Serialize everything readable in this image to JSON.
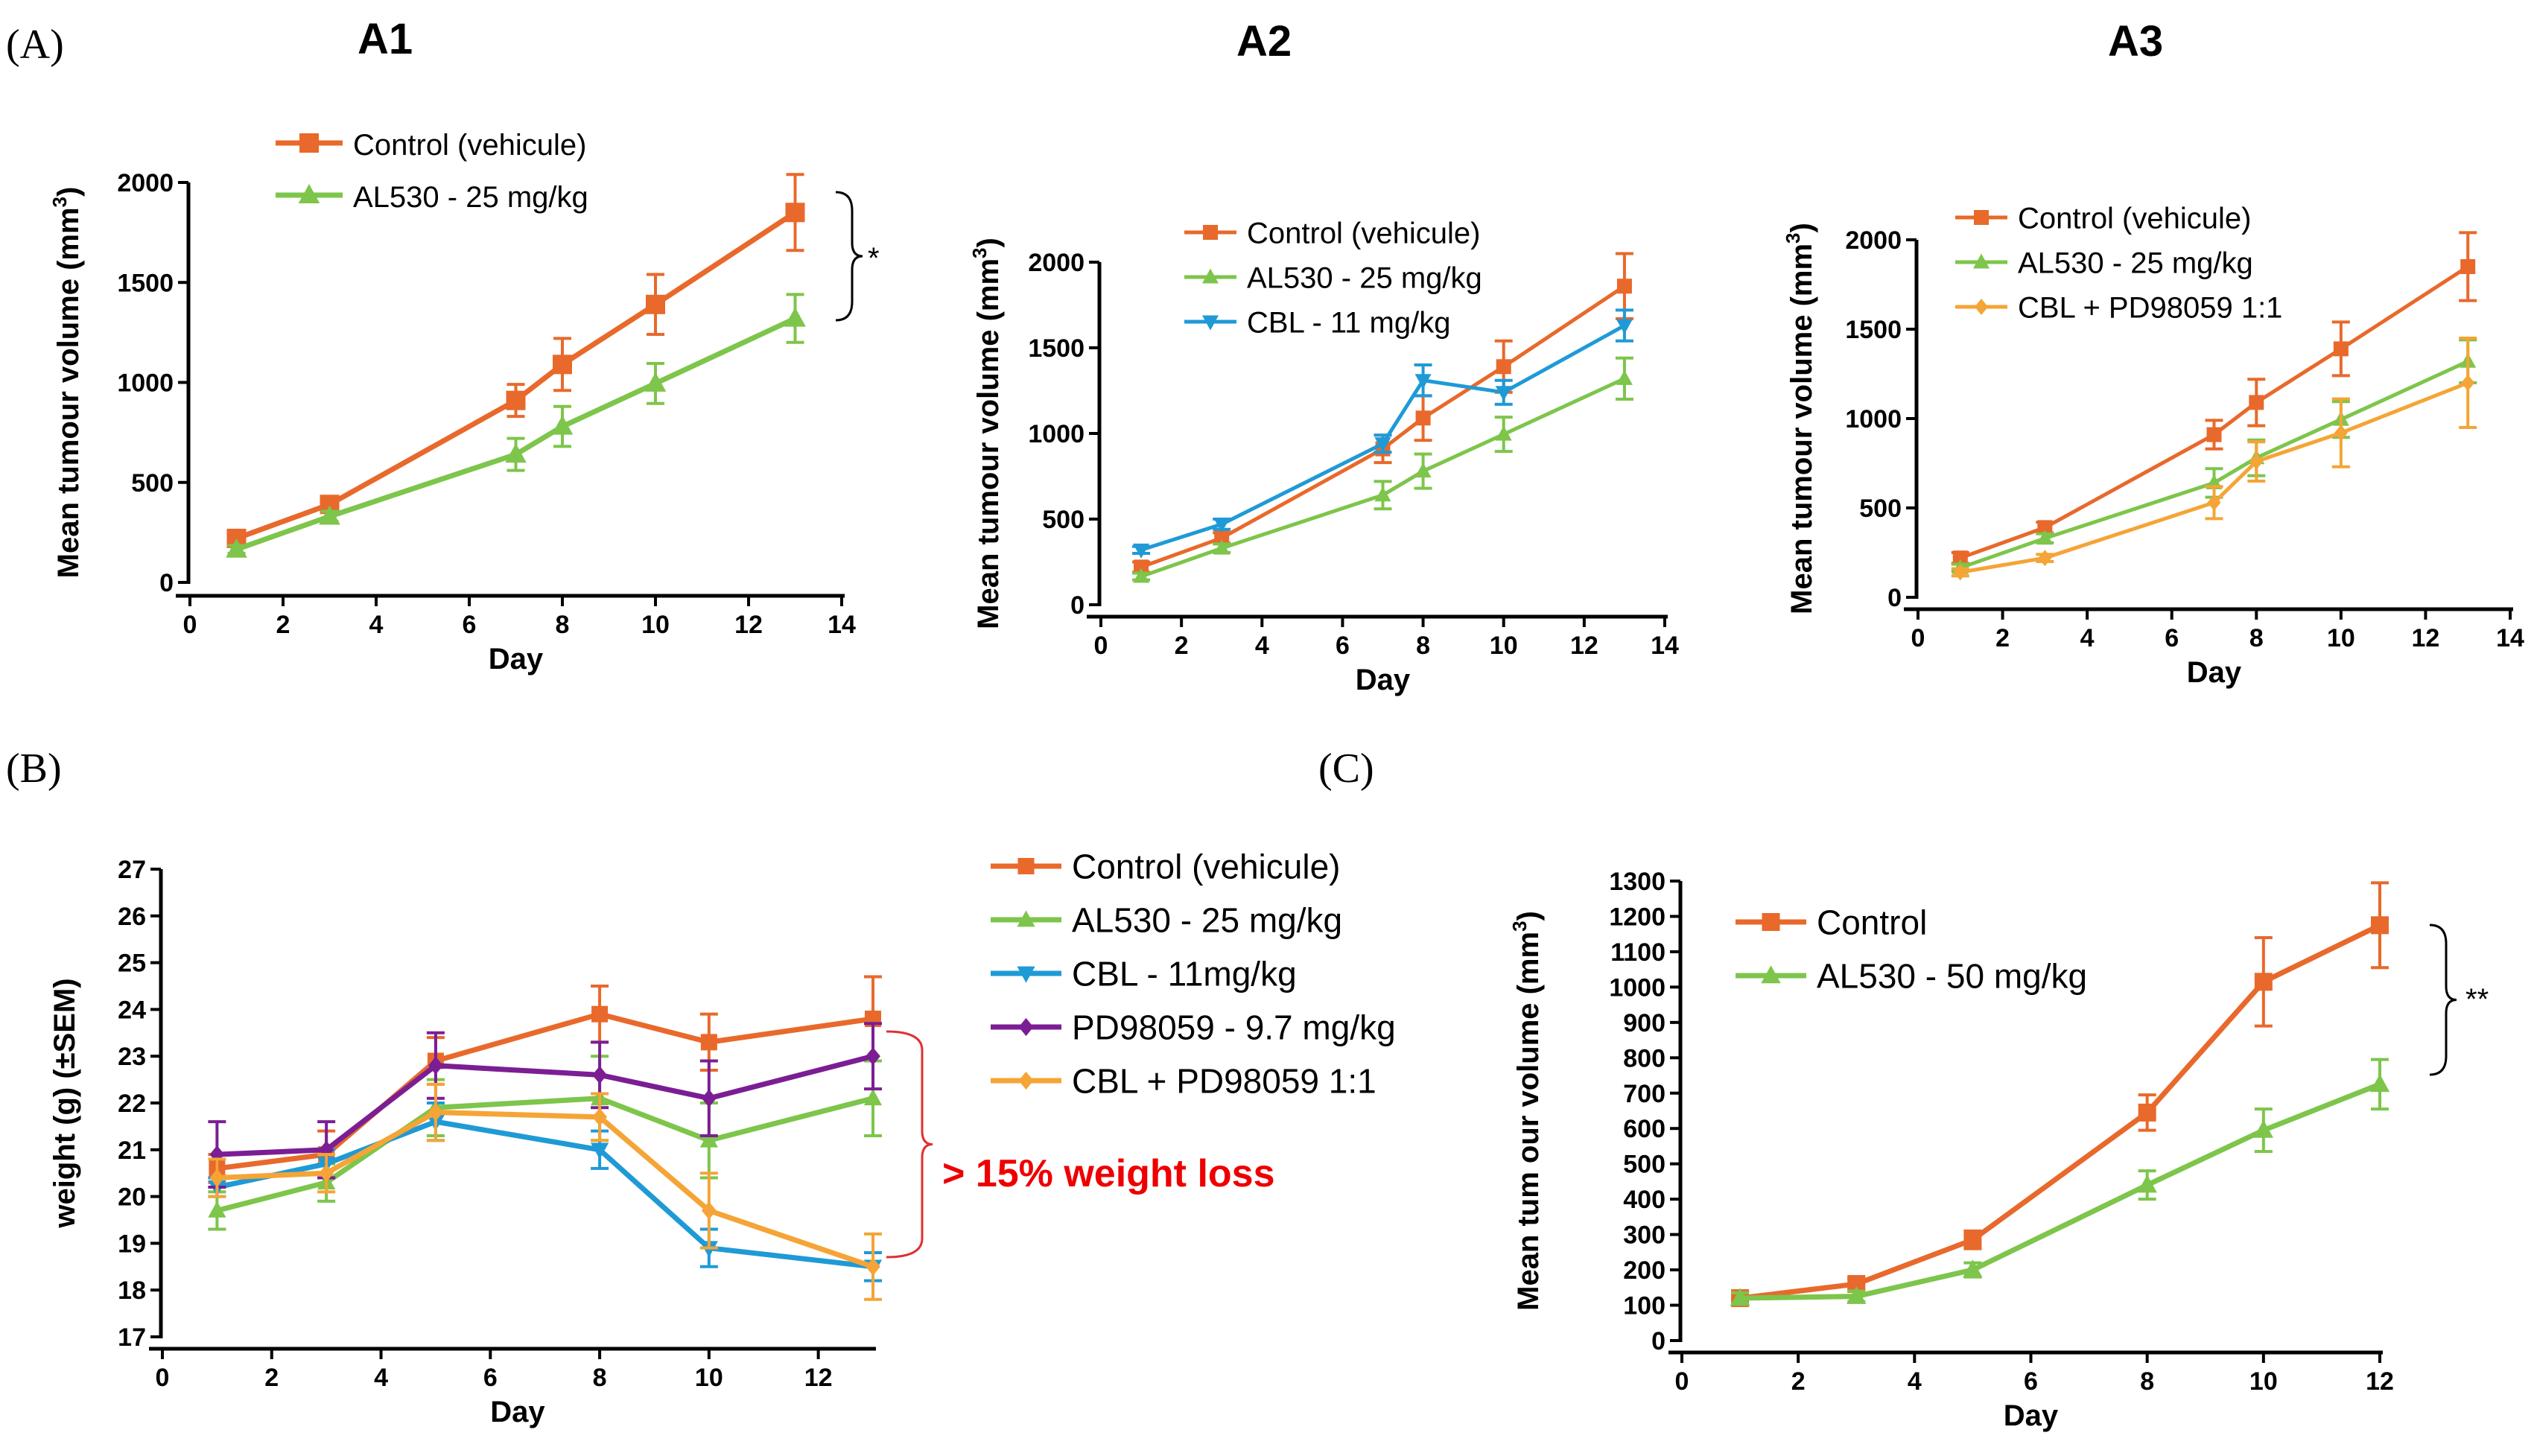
{
  "colors": {
    "control": "#E8692B",
    "al530": "#7DC54B",
    "cbl": "#1F9AD6",
    "pd": "#7B1E94",
    "combo": "#F5A436",
    "red": "#EE0000",
    "bracketB": "#E03030"
  },
  "labels": {
    "panelA": "(A)",
    "panelB": "(B)",
    "panelC": "(C)",
    "a1": "A1",
    "a2": "A2",
    "a3": "A3",
    "weight_loss": "> 15% weight loss",
    "star_a1": "*",
    "star_c": "**"
  },
  "chart_data": [
    {
      "id": "A1",
      "type": "line",
      "title": "A1",
      "xlabel": "Day",
      "ylabel": "Mean tumour volume (mm",
      "ylabel_sup": "3",
      "ylabel_close": ")",
      "xlim": [
        0,
        14
      ],
      "ylim": [
        0,
        2000
      ],
      "xticks": [
        0,
        2,
        4,
        6,
        8,
        10,
        12,
        14
      ],
      "yticks": [
        0,
        500,
        1000,
        1500,
        2000
      ],
      "series": [
        {
          "name": "Control (vehicule)",
          "color": "control",
          "marker": "square",
          "x": [
            1,
            3,
            7,
            8,
            10,
            13
          ],
          "y": [
            220,
            390,
            910,
            1090,
            1390,
            1850
          ],
          "err": [
            30,
            30,
            80,
            130,
            150,
            190
          ]
        },
        {
          "name": "AL530 - 25 mg/kg",
          "color": "al530",
          "marker": "triangle-up",
          "x": [
            1,
            3,
            7,
            8,
            10,
            13
          ],
          "y": [
            165,
            330,
            640,
            780,
            995,
            1320
          ],
          "err": [
            20,
            25,
            80,
            100,
            100,
            120
          ]
        }
      ],
      "annotation": "*"
    },
    {
      "id": "A2",
      "type": "line",
      "title": "A2",
      "xlabel": "Day",
      "ylabel": "Mean tumour volume (mm",
      "ylabel_sup": "3",
      "ylabel_close": ")",
      "xlim": [
        0,
        14
      ],
      "ylim": [
        0,
        2000
      ],
      "xticks": [
        0,
        2,
        4,
        6,
        8,
        10,
        12,
        14
      ],
      "yticks": [
        0,
        500,
        1000,
        1500,
        2000
      ],
      "series": [
        {
          "name": "Control (vehicule)",
          "color": "control",
          "marker": "square",
          "x": [
            1,
            3,
            7,
            8,
            10,
            13
          ],
          "y": [
            220,
            390,
            910,
            1090,
            1390,
            1860
          ],
          "err": [
            30,
            30,
            80,
            130,
            150,
            190
          ]
        },
        {
          "name": "AL530 - 25 mg/kg",
          "color": "al530",
          "marker": "triangle-up",
          "x": [
            1,
            3,
            7,
            8,
            10,
            13
          ],
          "y": [
            165,
            330,
            640,
            780,
            995,
            1320
          ],
          "err": [
            20,
            25,
            80,
            100,
            100,
            120
          ]
        },
        {
          "name": "CBL - 11 mg/kg",
          "color": "cbl",
          "marker": "triangle-down",
          "x": [
            1,
            3,
            7,
            8,
            10,
            13
          ],
          "y": [
            320,
            470,
            940,
            1310,
            1240,
            1630
          ],
          "err": [
            20,
            30,
            50,
            90,
            70,
            90
          ]
        }
      ]
    },
    {
      "id": "A3",
      "type": "line",
      "title": "A3",
      "xlabel": "Day",
      "ylabel": "Mean tumour volume (mm",
      "ylabel_sup": "3",
      "ylabel_close": ")",
      "xlim": [
        0,
        14
      ],
      "ylim": [
        0,
        2000
      ],
      "xticks": [
        0,
        2,
        4,
        6,
        8,
        10,
        12,
        14
      ],
      "yticks": [
        0,
        500,
        1000,
        1500,
        2000
      ],
      "series": [
        {
          "name": "Control (vehicule)",
          "color": "control",
          "marker": "square",
          "x": [
            1,
            3,
            7,
            8,
            10,
            13
          ],
          "y": [
            220,
            390,
            910,
            1090,
            1390,
            1850
          ],
          "err": [
            30,
            30,
            80,
            130,
            150,
            190
          ]
        },
        {
          "name": "AL530 - 25 mg/kg",
          "color": "al530",
          "marker": "triangle-up",
          "x": [
            1,
            3,
            7,
            8,
            10,
            13
          ],
          "y": [
            165,
            330,
            640,
            780,
            995,
            1320
          ],
          "err": [
            20,
            25,
            80,
            100,
            100,
            120
          ]
        },
        {
          "name": "CBL + PD98059 1:1",
          "color": "combo",
          "marker": "diamond",
          "x": [
            1,
            3,
            7,
            8,
            10,
            13
          ],
          "y": [
            140,
            220,
            530,
            760,
            920,
            1200
          ],
          "err": [
            20,
            20,
            90,
            110,
            190,
            250
          ]
        }
      ]
    },
    {
      "id": "B",
      "type": "line",
      "title": "",
      "xlabel": "Day",
      "ylabel": "weight  (g) (±SEM)",
      "xlim": [
        0,
        13
      ],
      "ylim": [
        17,
        27
      ],
      "xticks": [
        0,
        2,
        4,
        6,
        8,
        10,
        12
      ],
      "yticks": [
        17,
        18,
        19,
        20,
        21,
        22,
        23,
        24,
        25,
        26,
        27
      ],
      "series": [
        {
          "name": "Control (vehicule)",
          "color": "control",
          "marker": "square",
          "x": [
            1,
            3,
            5,
            8,
            10,
            13
          ],
          "y": [
            20.6,
            20.9,
            22.9,
            23.9,
            23.3,
            23.8
          ],
          "err": [
            0.3,
            0.5,
            0.5,
            0.6,
            0.6,
            0.9
          ]
        },
        {
          "name": "AL530 - 25 mg/kg",
          "color": "al530",
          "marker": "triangle-up",
          "x": [
            1,
            3,
            5,
            8,
            10,
            13
          ],
          "y": [
            19.7,
            20.3,
            21.9,
            22.1,
            21.2,
            22.1
          ],
          "err": [
            0.4,
            0.4,
            0.6,
            0.9,
            0.8,
            0.8
          ]
        },
        {
          "name": "CBL - 11mg/kg",
          "color": "cbl",
          "marker": "triangle-down",
          "x": [
            1,
            3,
            5,
            8,
            10,
            13
          ],
          "y": [
            20.2,
            20.7,
            21.6,
            21.0,
            18.9,
            18.5
          ],
          "err": [
            0.2,
            0.3,
            0.4,
            0.4,
            0.4,
            0.3
          ]
        },
        {
          "name": "PD98059 - 9.7 mg/kg",
          "color": "pd",
          "marker": "diamond",
          "x": [
            1,
            3,
            5,
            8,
            10,
            13
          ],
          "y": [
            20.9,
            21.0,
            22.8,
            22.6,
            22.1,
            23.0
          ],
          "err": [
            0.7,
            0.6,
            0.7,
            0.7,
            0.8,
            0.7
          ]
        },
        {
          "name": "CBL + PD98059 1:1",
          "color": "combo",
          "marker": "diamond",
          "x": [
            1,
            3,
            5,
            8,
            10,
            13
          ],
          "y": [
            20.4,
            20.5,
            21.8,
            21.7,
            19.7,
            18.5
          ],
          "err": [
            0.4,
            0.4,
            0.6,
            0.5,
            0.8,
            0.7
          ]
        }
      ],
      "annotation": "> 15% weight loss"
    },
    {
      "id": "C",
      "type": "line",
      "title": "",
      "xlabel": "Day",
      "ylabel": "Mean tum our  volume  (mm",
      "ylabel_sup": "3",
      "ylabel_close": ")",
      "xlim": [
        0,
        12
      ],
      "ylim": [
        0,
        1300
      ],
      "xticks": [
        0,
        2,
        4,
        6,
        8,
        10,
        12
      ],
      "yticks": [
        0,
        100,
        200,
        300,
        400,
        500,
        600,
        700,
        800,
        900,
        1000,
        1100,
        1200,
        1300
      ],
      "series": [
        {
          "name": "Control",
          "color": "control",
          "marker": "square",
          "x": [
            1,
            3,
            5,
            8,
            10,
            12
          ],
          "y": [
            120,
            160,
            285,
            645,
            1015,
            1175
          ],
          "err": [
            15,
            15,
            25,
            50,
            125,
            120
          ]
        },
        {
          "name": "AL530 - 50 mg/kg",
          "color": "al530",
          "marker": "triangle-up",
          "x": [
            1,
            3,
            5,
            8,
            10,
            12
          ],
          "y": [
            120,
            125,
            200,
            440,
            595,
            725
          ],
          "err": [
            15,
            15,
            20,
            40,
            60,
            70
          ]
        }
      ],
      "annotation": "**"
    }
  ]
}
